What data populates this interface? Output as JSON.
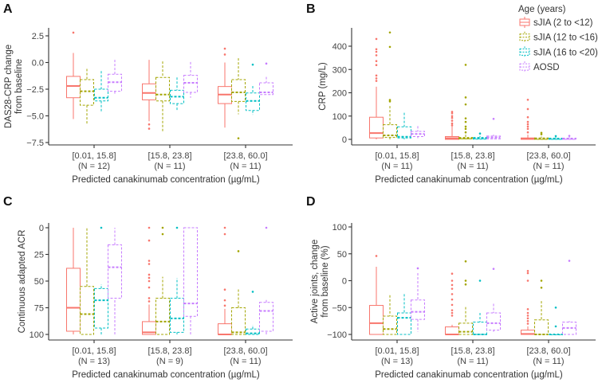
{
  "legend": {
    "title": "Age (years)",
    "position": "top-right",
    "items": [
      {
        "name": "sJIA (2 to <12)",
        "color": "#F8766D"
      },
      {
        "name": "sJIA (12 to <16)",
        "color": "#A3A500"
      },
      {
        "name": "sJIA (16 to <20)",
        "color": "#00BFC4"
      },
      {
        "name": "AOSD",
        "color": "#C77CFF"
      }
    ]
  },
  "chart_data": [
    {
      "panel": "A",
      "type": "box",
      "ylabel": [
        "DAS28-CRP change",
        "from baseline"
      ],
      "xlabel": "Predicted canakinumab concentration (µg/mL)",
      "ylim": [
        -7.5,
        2.5
      ],
      "yticks": [
        2.5,
        0.0,
        -2.5,
        -5.0,
        -7.5
      ],
      "ytick_labels": [
        "2.5",
        "0.0",
        "−2.5",
        "−5.0",
        "−7.5"
      ],
      "categories": [
        [
          "[0.01, 15.8]",
          "(N = 12)"
        ],
        [
          "[15.8, 23.8]",
          "(N = 11)"
        ],
        [
          "[23.8, 60.0]",
          "(N = 11)"
        ]
      ],
      "boxes": [
        [
          [
            -5.3,
            -3.3,
            -2.2,
            -1.3,
            0.9,
            [
              2.8
            ]
          ],
          [
            -5.8,
            -4.0,
            -2.7,
            -1.6,
            -0.6,
            []
          ],
          [
            -4.7,
            -3.6,
            -3.3,
            -2.5,
            -0.8,
            []
          ],
          [
            -3.0,
            -2.7,
            -1.85,
            -1.1,
            0.25,
            []
          ]
        ],
        [
          [
            -5.5,
            -3.5,
            -2.85,
            -2.0,
            0.25,
            [
              -5.8,
              -6.2
            ]
          ],
          [
            -6.5,
            -3.6,
            -3.0,
            -1.4,
            0.1,
            []
          ],
          [
            -4.5,
            -3.85,
            -3.2,
            -2.6,
            -1.4,
            []
          ],
          [
            -3.3,
            -2.8,
            -1.9,
            -1.2,
            0.05,
            []
          ]
        ],
        [
          [
            -6.1,
            -3.85,
            -3.0,
            -2.25,
            0.0,
            [
              1.3,
              0.75
            ]
          ],
          [
            -4.85,
            -3.65,
            -2.8,
            -1.6,
            0.4,
            [
              -7.1
            ]
          ],
          [
            -4.9,
            -4.5,
            -3.6,
            -2.85,
            -2.2,
            [
              -0.2
            ]
          ],
          [
            -3.0,
            -3.0,
            -2.8,
            -1.9,
            -1.35,
            [
              -0.1
            ]
          ]
        ]
      ]
    },
    {
      "panel": "B",
      "type": "box",
      "ylabel": [
        "CRP (mg/L)"
      ],
      "xlabel": "Predicted canakinumab concentration (µg/mL)",
      "ylim": [
        0,
        460
      ],
      "yticks": [
        0,
        100,
        200,
        300,
        400
      ],
      "ytick_labels": [
        "0",
        "100",
        "200",
        "300",
        "400"
      ],
      "categories": [
        [
          "[0.01, 15.8]",
          "(N = 11)"
        ],
        [
          "[15.8, 23.8]",
          "(N = 11)"
        ],
        [
          "[23.8, 60.0]",
          "(N = 11)"
        ]
      ],
      "boxes": [
        [
          [
            0,
            6,
            27,
            95,
            226,
            [
              431,
              387,
              376,
              361,
              336,
              319,
              274,
              262,
              251
            ]
          ],
          [
            0,
            8,
            17,
            63,
            143,
            [
              459,
              397,
              169,
              163
            ]
          ],
          [
            0,
            6,
            11,
            54,
            114,
            []
          ],
          [
            5,
            12,
            23,
            34,
            57,
            []
          ]
        ],
        [
          [
            0,
            0,
            5,
            12,
            55,
            [
              118,
              112,
              100,
              92,
              80,
              68,
              60
            ]
          ],
          [
            0,
            2,
            4,
            8,
            20,
            [
              30,
              45,
              55,
              75,
              90,
              150,
              180,
              320
            ]
          ],
          [
            0,
            1,
            4,
            8,
            15,
            [
              25
            ]
          ],
          [
            0,
            2,
            8,
            14,
            20,
            [
              88
            ]
          ]
        ],
        [
          [
            0,
            0,
            2,
            6,
            20,
            [
              30,
              45,
              55,
              65,
              75,
              95,
              130,
              170
            ]
          ],
          [
            0,
            0,
            2,
            6,
            12,
            [
              22,
              28
            ]
          ],
          [
            0,
            0,
            2,
            5,
            10,
            [
              14
            ]
          ],
          [
            0,
            0,
            2,
            5,
            10,
            [
              15
            ]
          ]
        ]
      ]
    },
    {
      "panel": "C",
      "type": "box",
      "ylabel": [
        "Continuous adapted ACR"
      ],
      "xlabel": "Predicted canakinumab concentration (µg/mL)",
      "ylim": [
        0,
        100
      ],
      "yticks": [
        0,
        25,
        50,
        75,
        100
      ],
      "ytick_labels": [
        "0",
        "25",
        "50",
        "75",
        "100"
      ],
      "categories": [
        [
          "[0.01, 15.8]",
          "(N = 13)"
        ],
        [
          "[15.8, 23.8]",
          "(N = 9)"
        ],
        [
          "[23.8, 60.0]",
          "(N = 11)"
        ]
      ],
      "boxes": [
        [
          [
            0,
            38,
            75,
            97,
            100,
            []
          ],
          [
            0,
            55,
            81,
            100,
            100,
            []
          ],
          [
            53,
            57,
            68,
            94,
            100,
            [
              0
            ]
          ],
          [
            0,
            16,
            37,
            66,
            100,
            []
          ]
        ],
        [
          [
            72,
            88,
            98,
            100,
            100,
            [
              69,
              66,
              56,
              50,
              47,
              44,
              34,
              31,
              12,
              0
            ]
          ],
          [
            46,
            66,
            88,
            100,
            100,
            [
              6,
              0
            ]
          ],
          [
            47,
            66,
            85,
            98,
            100,
            [
              0
            ]
          ],
          [
            0,
            0,
            71,
            83,
            100,
            []
          ]
        ],
        [
          [
            76,
            90,
            100,
            100,
            100,
            [
              73,
              68,
              58,
              6,
              0
            ]
          ],
          [
            57,
            75,
            98,
            100,
            100,
            [
              22
            ]
          ],
          [
            91,
            95,
            99,
            100,
            100,
            [
              60
            ]
          ],
          [
            67,
            70,
            78,
            97,
            100,
            [
              0
            ]
          ]
        ]
      ]
    },
    {
      "panel": "D",
      "type": "box",
      "ylabel": [
        "Active joints, change",
        "from baseline (%)"
      ],
      "xlabel": "Predicted canakinumab concentration (µg/mL)",
      "ylim": [
        -100,
        100
      ],
      "yticks": [
        100,
        50,
        0,
        -50,
        -100
      ],
      "ytick_labels": [
        "100",
        "50",
        "0",
        "−50",
        "−100"
      ],
      "categories": [
        [
          "[0.01, 15.8]",
          "(N = 13)"
        ],
        [
          "[15.8, 23.8]",
          "(N = 11)"
        ],
        [
          "[23.8, 60.0]",
          "(N = 11)"
        ]
      ],
      "boxes": [
        [
          [
            -100,
            -100,
            -79,
            -46,
            26,
            [
              46
            ]
          ],
          [
            -100,
            -100,
            -90,
            -66,
            -27,
            []
          ],
          [
            -100,
            -100,
            -69,
            -60,
            -25,
            []
          ],
          [
            -95,
            -72,
            -58,
            -36,
            14,
            [
              23
            ]
          ]
        ],
        [
          [
            -100,
            -100,
            -100,
            -86,
            -82,
            [
              13,
              0,
              -8,
              -15,
              -25,
              -35,
              -45,
              -55,
              -60,
              -65
            ]
          ],
          [
            -100,
            -100,
            -95,
            -79,
            -49,
            [
              36,
              0,
              -7
            ]
          ],
          [
            -100,
            -100,
            -100,
            -77,
            -60,
            [
              0
            ]
          ],
          [
            -95,
            -92,
            -79,
            -60,
            -43,
            [
              22
            ]
          ]
        ],
        [
          [
            -100,
            -100,
            -99,
            -92,
            -85,
            [
              18,
              14,
              0,
              -53,
              -60,
              -65,
              -70,
              -75,
              -80
            ]
          ],
          [
            -100,
            -100,
            -100,
            -73,
            -38,
            [
              0,
              -13
            ]
          ],
          [
            -100,
            -100,
            -100,
            -100,
            -100,
            [
              -50,
              -85
            ]
          ],
          [
            -100,
            -100,
            -88,
            -77,
            -75,
            [
              37
            ]
          ]
        ]
      ]
    }
  ]
}
